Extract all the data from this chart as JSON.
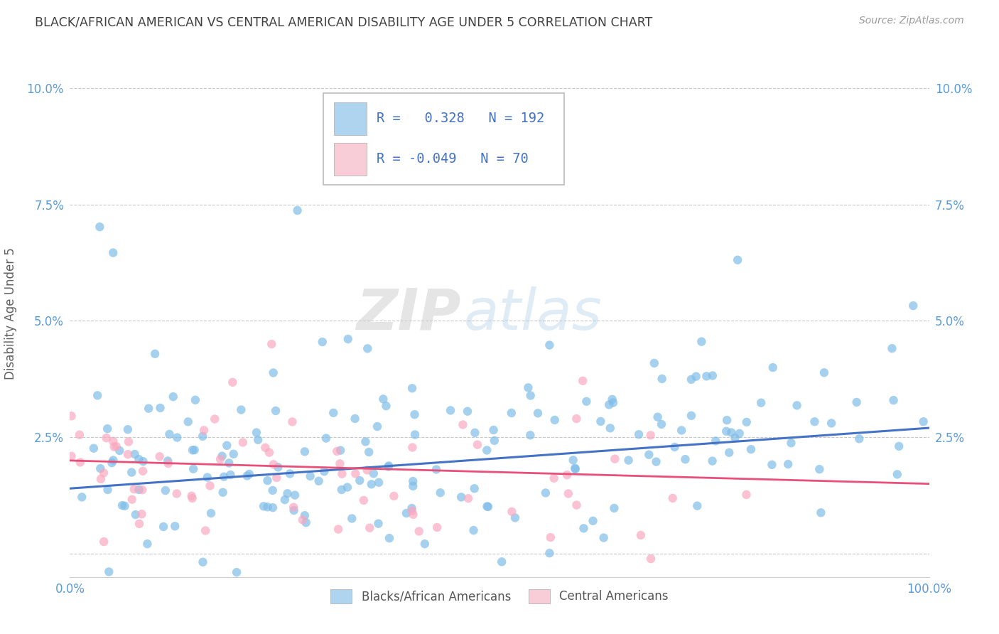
{
  "title": "BLACK/AFRICAN AMERICAN VS CENTRAL AMERICAN DISABILITY AGE UNDER 5 CORRELATION CHART",
  "source": "Source: ZipAtlas.com",
  "ylabel": "Disability Age Under 5",
  "xlim": [
    0.0,
    1.0
  ],
  "ylim": [
    -0.005,
    0.108
  ],
  "yticks": [
    0.0,
    0.025,
    0.05,
    0.075,
    0.1
  ],
  "blue_R": 0.328,
  "blue_N": 192,
  "pink_R": -0.049,
  "pink_N": 70,
  "blue_marker_color": "#7fbde8",
  "pink_marker_color": "#f9a8c0",
  "legend_blue_face": "#aed4ef",
  "legend_pink_face": "#f9cdd8",
  "watermark_zip": "ZIP",
  "watermark_atlas": "atlas",
  "background_color": "#ffffff",
  "grid_color": "#c8c8c8",
  "title_color": "#404040",
  "axis_label_color": "#5b9bd5",
  "legend_R_color": "#4472c4",
  "blue_line_color": "#4472c4",
  "pink_line_color": "#e8507a",
  "blue_line_start_y": 0.014,
  "blue_line_end_y": 0.027,
  "pink_line_start_y": 0.02,
  "pink_line_end_y": 0.015
}
